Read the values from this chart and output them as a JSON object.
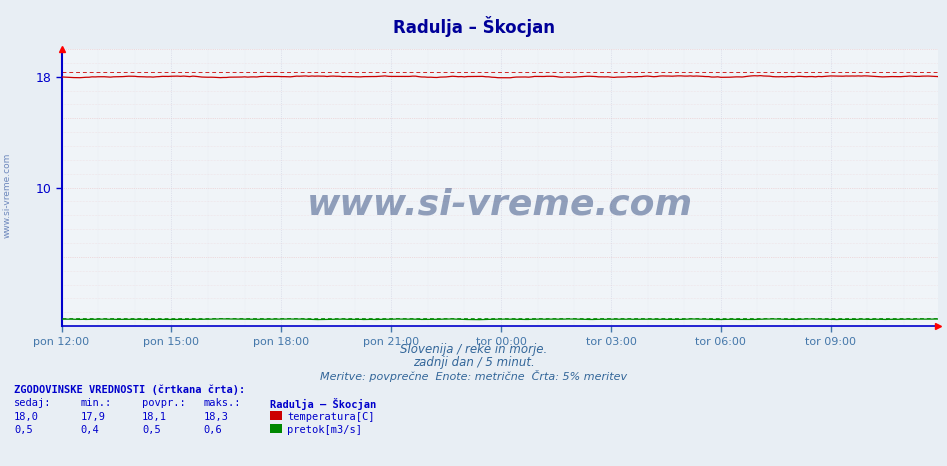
{
  "title": "Radulja – Škocjan",
  "title_color": "#000099",
  "bg_color": "#e8eef4",
  "plot_bg_color": "#f0f4f8",
  "grid_color_h": "#e8a0a0",
  "grid_color_v": "#c0c0d8",
  "left_axis_color": "#0000cc",
  "tick_label_color": "#4477aa",
  "ylim": [
    0,
    20
  ],
  "yticks": [
    10,
    18
  ],
  "xtick_positions": [
    0,
    36,
    72,
    108,
    144,
    180,
    216,
    252
  ],
  "xtick_labels": [
    "pon 12:00",
    "pon 15:00",
    "pon 18:00",
    "pon 21:00",
    "tor 00:00",
    "tor 03:00",
    "tor 06:00",
    "tor 09:00"
  ],
  "n_points": 288,
  "temp_value": 18.0,
  "temp_min": 17.9,
  "temp_max": 18.3,
  "temp_color": "#cc0000",
  "flow_value": 0.5,
  "flow_min": 0.4,
  "flow_max": 0.6,
  "flow_color": "#008800",
  "hist_temp": 18.3,
  "hist_flow": 0.6,
  "watermark": "www.si-vreme.com",
  "watermark_color": "#1a3570",
  "sidebar_text": "www.si-vreme.com",
  "sidebar_color": "#4466aa",
  "footer_color": "#336699",
  "footer_line1": "Slovenija / reke in morje.",
  "footer_line2": "zadnji dan / 5 minut.",
  "footer_line3": "Meritve: povprečne  Enote: metrične  Črta: 5% meritev"
}
